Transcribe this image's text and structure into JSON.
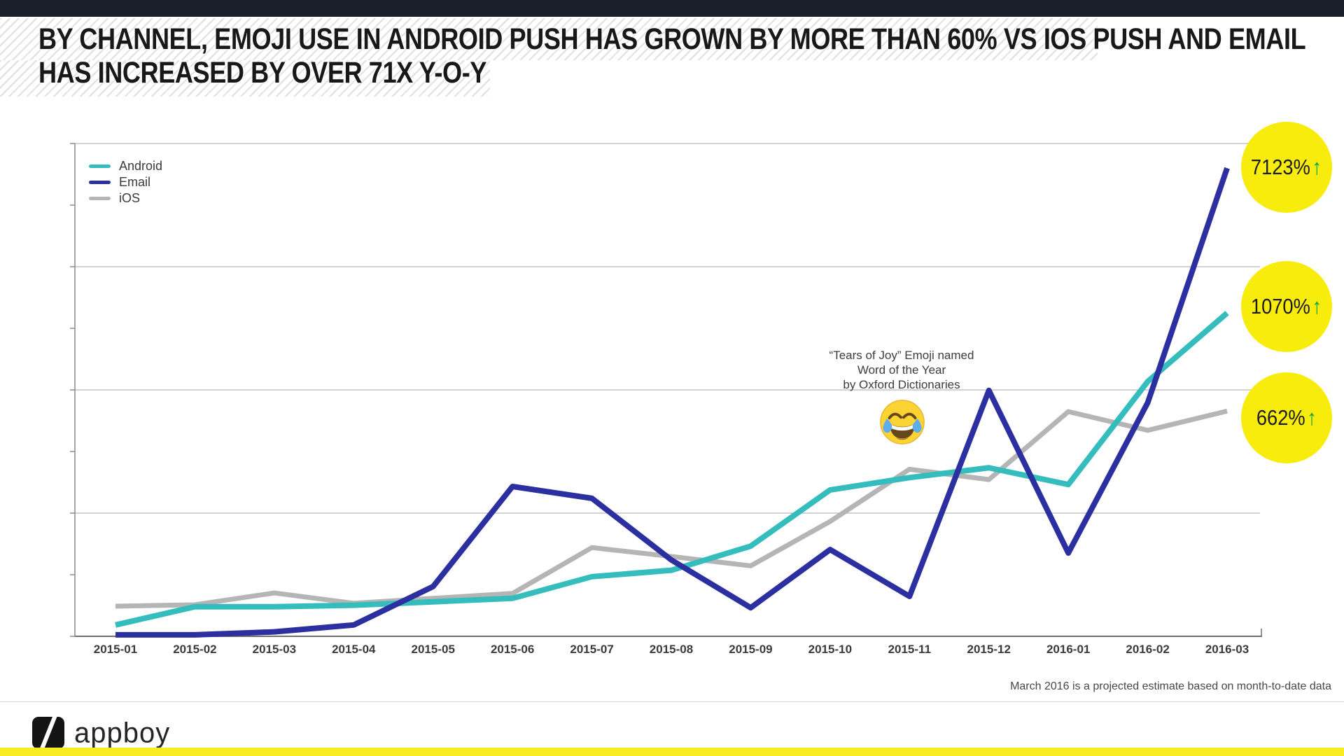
{
  "header": {
    "title_line1": "BY CHANNEL, EMOJI USE IN ANDROID PUSH HAS GROWN BY MORE THAN 60% VS IOS PUSH AND EMAIL",
    "title_line2": "HAS INCREASED BY OVER 71X Y-O-Y"
  },
  "chart_data": {
    "type": "line",
    "title": "",
    "xlabel": "",
    "ylabel": "",
    "y_axis_tick_labels": "none (relative emoji-use index, 0-100 of plot height)",
    "ylim": [
      0,
      100
    ],
    "gridlines": "horizontal, 4 bands",
    "legend_position": "top-left",
    "x_labels": [
      "2015-01",
      "2015-02",
      "2015-03",
      "2015-04",
      "2015-05",
      "2015-06",
      "2015-07",
      "2015-08",
      "2015-09",
      "2015-10",
      "2015-11",
      "2015-12",
      "2016-01",
      "2016-02",
      "2016-03"
    ],
    "series": [
      {
        "name": "Android",
        "color": "#35bdbd",
        "values": [
          2.3,
          6.0,
          6.0,
          6.3,
          7.0,
          7.7,
          12.1,
          13.4,
          18.3,
          29.7,
          32.2,
          34.2,
          30.8,
          51.7,
          65.6
        ]
      },
      {
        "name": "Email",
        "color": "#2c2fa0",
        "values": [
          0.3,
          0.3,
          0.9,
          2.3,
          10.1,
          30.4,
          28.0,
          15.5,
          5.8,
          17.6,
          8.1,
          49.9,
          16.9,
          47.4,
          95.0
        ]
      },
      {
        "name": "iOS",
        "color": "#b5b5b5",
        "values": [
          6.1,
          6.4,
          8.8,
          6.7,
          7.7,
          8.7,
          18.0,
          16.2,
          14.3,
          23.3,
          33.9,
          31.8,
          45.6,
          41.8,
          45.7
        ]
      }
    ],
    "annotation": {
      "line1": "“Tears of Joy” Emoji named",
      "line2": "Word of the Year",
      "line3": "by Oxford Dictionaries",
      "emoji": "face-with-tears-of-joy",
      "near_x": "2015-11"
    },
    "callouts": [
      {
        "value": "7123%",
        "arrow": "↑",
        "series": "Email"
      },
      {
        "value": "1070%",
        "arrow": "↑",
        "series": "Android"
      },
      {
        "value": "662%",
        "arrow": "↑",
        "series": "iOS"
      }
    ]
  },
  "footnote": "March 2016 is a projected estimate based on month-to-date data",
  "logo": {
    "wordmark": "appboy"
  },
  "colors": {
    "top_bar": "#1a202b",
    "callout_circle": "#f8ec0c",
    "callout_arrow_green": "#00a14b",
    "bottom_bar_yellow": "#f8ec24",
    "gridline": "#b9b9b9",
    "axis": "#8a8a8a"
  }
}
